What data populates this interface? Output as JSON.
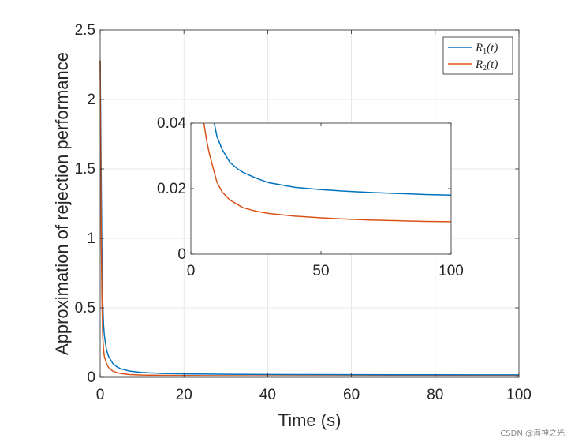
{
  "chart_data": [
    {
      "type": "line",
      "role": "main",
      "xlabel": "Time (s)",
      "ylabel": "Approximation of rejection performance",
      "xlim": [
        0,
        100
      ],
      "ylim": [
        0,
        2.5
      ],
      "xticks": [
        0,
        20,
        40,
        60,
        80,
        100
      ],
      "yticks": [
        0,
        0.5,
        1,
        1.5,
        2,
        2.5
      ],
      "xtick_labels": [
        "0",
        "20",
        "40",
        "60",
        "80",
        "100"
      ],
      "ytick_labels": [
        "0",
        "0.5",
        "1",
        "1.5",
        "2",
        "2.5"
      ],
      "grid": true,
      "legend_position": "top-right",
      "series": [
        {
          "name": "R1(t)",
          "color": "#0072BD",
          "x": [
            0,
            0.2,
            0.4,
            0.6,
            0.8,
            1,
            1.5,
            2,
            3,
            4,
            5,
            7,
            10,
            15,
            20,
            30,
            40,
            50,
            60,
            70,
            80,
            90,
            100
          ],
          "y": [
            2.28,
            1.6,
            0.95,
            0.55,
            0.38,
            0.3,
            0.2,
            0.15,
            0.1,
            0.075,
            0.06,
            0.045,
            0.035,
            0.028,
            0.025,
            0.022,
            0.0205,
            0.0197,
            0.019,
            0.0185,
            0.0182,
            0.018,
            0.0178
          ]
        },
        {
          "name": "R2(t)",
          "color": "#D95319",
          "x": [
            0,
            0.2,
            0.4,
            0.6,
            0.8,
            1,
            1.5,
            2,
            3,
            4,
            5,
            7,
            10,
            15,
            20,
            30,
            40,
            50,
            60,
            70,
            80,
            90,
            100
          ],
          "y": [
            2.28,
            1.2,
            0.6,
            0.3,
            0.2,
            0.15,
            0.1,
            0.07,
            0.045,
            0.034,
            0.027,
            0.02,
            0.0165,
            0.014,
            0.0128,
            0.0116,
            0.0109,
            0.0106,
            0.0103,
            0.0101,
            0.01,
            0.0099,
            0.0098
          ]
        }
      ]
    },
    {
      "type": "line",
      "role": "inset",
      "xlim": [
        0,
        100
      ],
      "ylim": [
        0,
        0.04
      ],
      "xticks": [
        0,
        50,
        100
      ],
      "yticks": [
        0,
        0.02,
        0.04
      ],
      "xtick_labels": [
        "0",
        "50",
        "100"
      ],
      "ytick_labels": [
        "0",
        "0.02",
        "0.04"
      ],
      "grid": false,
      "series": [
        {
          "name": "R1(t)",
          "color": "#0072BD",
          "x": [
            9,
            10,
            12,
            15,
            18,
            20,
            25,
            30,
            40,
            50,
            60,
            70,
            80,
            90,
            100
          ],
          "y": [
            0.04,
            0.036,
            0.032,
            0.028,
            0.026,
            0.025,
            0.0232,
            0.0218,
            0.0204,
            0.0197,
            0.0192,
            0.0188,
            0.0185,
            0.0182,
            0.018
          ]
        },
        {
          "name": "R2(t)",
          "color": "#D95319",
          "x": [
            5,
            6,
            7,
            8,
            10,
            12,
            15,
            20,
            25,
            30,
            40,
            50,
            60,
            70,
            80,
            90,
            100
          ],
          "y": [
            0.04,
            0.035,
            0.031,
            0.028,
            0.022,
            0.019,
            0.0165,
            0.0142,
            0.0131,
            0.0124,
            0.0116,
            0.0111,
            0.0107,
            0.0104,
            0.0102,
            0.01,
            0.0099
          ]
        }
      ]
    }
  ],
  "legend": {
    "entries": [
      {
        "base": "R",
        "sub": "1",
        "rest": "(t)",
        "color": "#0072BD"
      },
      {
        "base": "R",
        "sub": "2",
        "rest": "(t)",
        "color": "#D95319"
      }
    ]
  },
  "watermark": "CSDN @海神之光"
}
